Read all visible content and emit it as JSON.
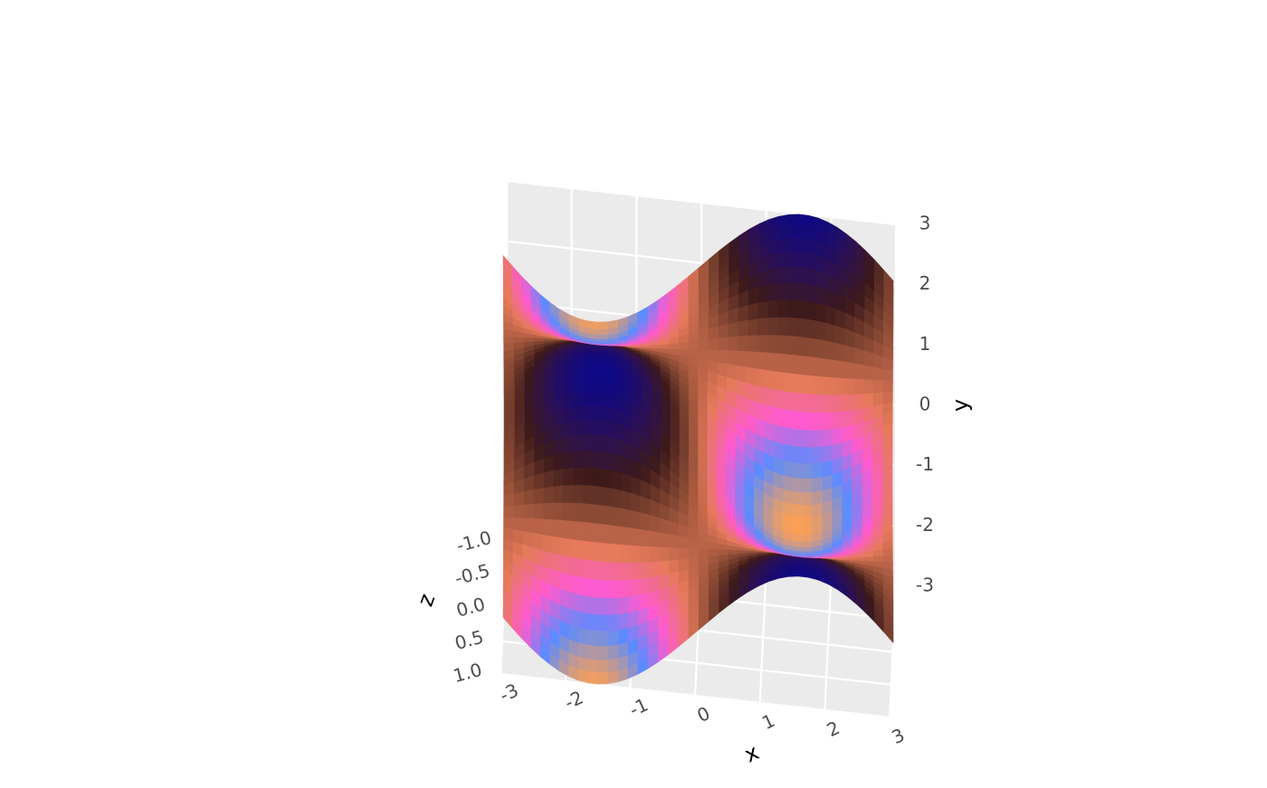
{
  "chart_data": {
    "type": "surface3d",
    "title": "",
    "colormap": [
      "#0d0887",
      "#2b1055",
      "#3d1a1a",
      "#8a4a34",
      "#e67a5a",
      "#ff5ad0",
      "#5a8cff",
      "#ffa050"
    ],
    "axes": {
      "x": {
        "label": "x",
        "range": [
          -3,
          3
        ],
        "ticks": [
          "-3",
          "-2",
          "-1",
          "0",
          "1",
          "2",
          "3"
        ]
      },
      "y": {
        "label": "y",
        "range": [
          -3,
          3
        ],
        "ticks": [
          "-3",
          "-2",
          "-1",
          "0",
          "1",
          "2",
          "3"
        ]
      },
      "z": {
        "label": "z",
        "range": [
          -1,
          1
        ],
        "ticks": [
          "-1.0",
          "-0.5",
          "0.0",
          "0.5",
          "1.0"
        ]
      }
    },
    "surface": {
      "x_range": [
        -3,
        3
      ],
      "y_range": [
        -3,
        3
      ],
      "x_samples": 40,
      "y_samples": 40,
      "expression": "z = sin(x) * cos(y)"
    },
    "grid": true,
    "panel_color": "#ebebeb",
    "grid_color": "#ffffff"
  }
}
